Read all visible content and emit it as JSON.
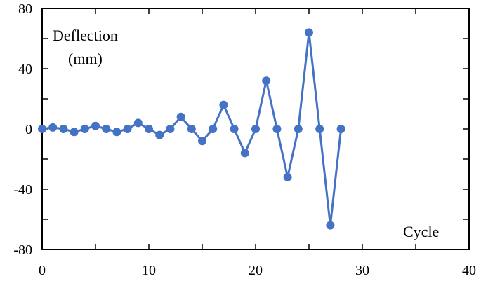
{
  "chart_data": {
    "type": "line",
    "xlabel": "Cycle",
    "ylabel_line1": "Deflection",
    "ylabel_line2": "(mm)",
    "xlim": [
      0,
      40
    ],
    "ylim": [
      -80,
      80
    ],
    "x_ticks": [
      0,
      10,
      20,
      30,
      40
    ],
    "y_ticks": [
      80,
      40,
      0,
      -40,
      -80
    ],
    "x_tick_labels": [
      "0",
      "10",
      "20",
      "30",
      "40"
    ],
    "y_tick_labels": [
      "80",
      "40",
      "0",
      "-40",
      "-80"
    ],
    "grid": false,
    "line_color": "#4472c4",
    "series": [
      {
        "x": [
          0,
          1,
          2,
          3,
          4,
          5,
          6,
          7,
          8,
          9,
          10,
          11,
          12,
          13,
          14,
          15,
          16,
          17,
          18,
          19,
          20,
          21,
          22,
          23,
          24,
          25,
          26,
          27,
          28
        ],
        "y": [
          0,
          1,
          0,
          -2,
          0,
          2,
          0,
          -2,
          0,
          4,
          0,
          -4,
          0,
          8,
          0,
          -8,
          0,
          16,
          0,
          -16,
          0,
          32,
          0,
          -32,
          0,
          64,
          0,
          -64,
          0
        ]
      }
    ]
  }
}
